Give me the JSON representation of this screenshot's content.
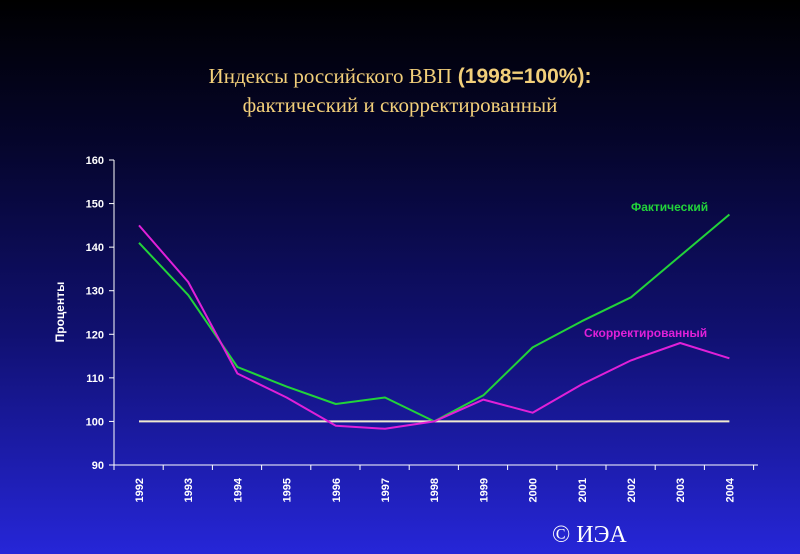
{
  "title": {
    "line1_text": "Индексы российского ВВП",
    "line1_bold": "(1998=100%):",
    "line2": "фактический и скорректированный"
  },
  "footer": "© ИЭА",
  "chart_data": {
    "type": "line",
    "title": "Индексы российского ВВП (1998=100%): фактический и скорректированный",
    "xlabel": "",
    "ylabel": "Проценты",
    "categories": [
      "1992",
      "1993",
      "1994",
      "1995",
      "1996",
      "1997",
      "1998",
      "1999",
      "2000",
      "2001",
      "2002",
      "2003",
      "2004"
    ],
    "ylim": [
      90,
      160
    ],
    "yticks": [
      90,
      100,
      110,
      120,
      130,
      140,
      150,
      160
    ],
    "grid": false,
    "series": [
      {
        "name": "Фактический",
        "color": "#22d33a",
        "values": [
          141,
          129,
          112.5,
          108,
          104,
          105.5,
          100,
          106,
          117,
          123,
          128.5,
          138,
          147.5
        ]
      },
      {
        "name": "Скорректированный",
        "color": "#e020d8",
        "values": [
          145,
          132,
          111,
          105.5,
          99,
          98.3,
          100,
          105,
          102,
          108.5,
          114,
          118,
          114.5
        ]
      }
    ],
    "reference_line": {
      "value": 100,
      "color": "#f0ead0"
    }
  }
}
